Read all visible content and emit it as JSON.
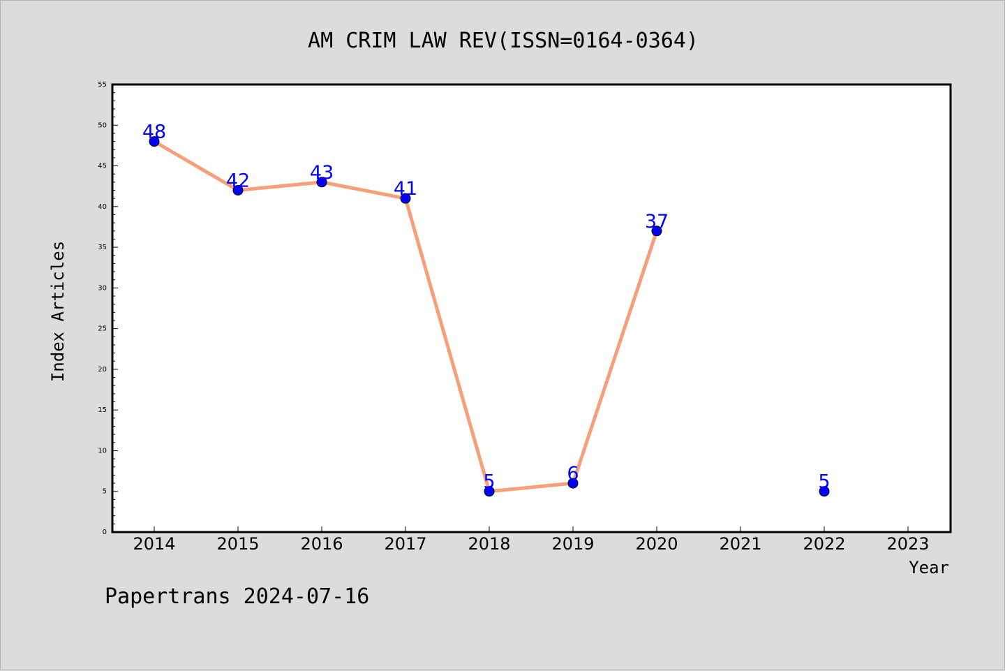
{
  "chart_data": {
    "type": "line",
    "title": "AM CRIM LAW REV(ISSN=0164-0364)",
    "xlabel": "Year",
    "ylabel": "Index Articles",
    "categories": [
      "2014",
      "2015",
      "2016",
      "2017",
      "2018",
      "2019",
      "2020",
      "2021",
      "2022",
      "2023"
    ],
    "y_ticks": [
      "0",
      "5",
      "10",
      "15",
      "20",
      "25",
      "30",
      "35",
      "40",
      "45",
      "50",
      "55"
    ],
    "ylim": [
      0,
      55
    ],
    "series": [
      {
        "points": [
          {
            "x": "2014",
            "y": 48
          },
          {
            "x": "2015",
            "y": 42
          },
          {
            "x": "2016",
            "y": 43
          },
          {
            "x": "2017",
            "y": 41
          },
          {
            "x": "2018",
            "y": 5
          },
          {
            "x": "2019",
            "y": 6
          },
          {
            "x": "2020",
            "y": 37
          },
          {
            "x": "2022",
            "y": 5
          }
        ],
        "connected_segments": [
          [
            0,
            6
          ]
        ]
      }
    ],
    "data_labels": true,
    "grid": false,
    "line_color": "#f5a07a",
    "marker_color": "#0000ff",
    "label_color": "#0000ff"
  },
  "footer": "Papertrans 2024-07-16"
}
